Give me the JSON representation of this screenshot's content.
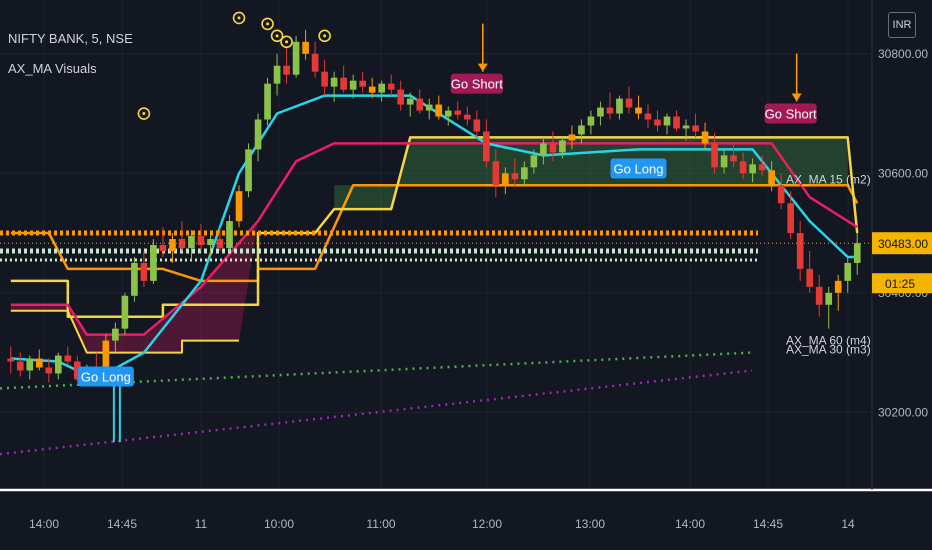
{
  "header": {
    "symbol": "NIFTY BANK, 5, NSE",
    "indicator": "AX_MA Visuals",
    "currency": "INR"
  },
  "chart_data": {
    "type": "candlestick",
    "x_ticks": [
      "14:00",
      "14:45",
      "11",
      "10:00",
      "11:00",
      "12:00",
      "13:00",
      "14:00",
      "14:45",
      "14"
    ],
    "y_ticks": [
      30800,
      30600,
      30400,
      30200
    ],
    "y_ticks_shown": [
      "30800.00",
      "30600.00",
      "30400.00",
      "30200.00"
    ],
    "ylim": [
      30070,
      30890
    ],
    "price_label": "30483.00",
    "price": 30483,
    "countdown": "01:25",
    "ma_labels": [
      {
        "text": "AX_MA 15 (m2)",
        "value": 30590
      },
      {
        "text": "AX_MA 60 (m4)",
        "value": 30320
      },
      {
        "text": "AX_MA 30 (m3)",
        "value": 30305
      }
    ],
    "signals": [
      {
        "text": "Go Long",
        "type": "long",
        "bar": 10,
        "price": 30260
      },
      {
        "text": "Go Short",
        "type": "short",
        "bar": 49,
        "price": 30750
      },
      {
        "text": "Go Long",
        "type": "long",
        "bar": 66,
        "price": 30608
      },
      {
        "text": "Go Short",
        "type": "short",
        "bar": 82,
        "price": 30700
      }
    ],
    "colors": {
      "up": "#8bc34a",
      "down": "#e53935",
      "flat": "#ff9800",
      "ma_fast": "#26d6e8",
      "ma_mid": "#e91e63",
      "ma_slow": "#f5d742",
      "ma_orange": "#ff9800",
      "dots_green": "#4caf50",
      "dots_purple": "#9c27b0",
      "long": "#2196f3",
      "short": "#a21a54"
    },
    "candles": [
      [
        30290,
        30310,
        30265,
        30285
      ],
      [
        30285,
        30300,
        30260,
        30270
      ],
      [
        30270,
        30295,
        30255,
        30290
      ],
      [
        30290,
        30305,
        30270,
        30275
      ],
      [
        30275,
        30290,
        30250,
        30265
      ],
      [
        30265,
        30300,
        30255,
        30295
      ],
      [
        30295,
        30310,
        30280,
        30285
      ],
      [
        30285,
        30295,
        30250,
        30255
      ],
      [
        30255,
        30280,
        30245,
        30275
      ],
      [
        30275,
        30300,
        30260,
        30270
      ],
      [
        30270,
        30330,
        30265,
        30320
      ],
      [
        30320,
        30350,
        30300,
        30340
      ],
      [
        30340,
        30400,
        30330,
        30395
      ],
      [
        30395,
        30460,
        30385,
        30450
      ],
      [
        30450,
        30470,
        30410,
        30420
      ],
      [
        30420,
        30490,
        30415,
        30480
      ],
      [
        30480,
        30510,
        30460,
        30470
      ],
      [
        30470,
        30500,
        30450,
        30490
      ],
      [
        30490,
        30520,
        30470,
        30475
      ],
      [
        30475,
        30505,
        30455,
        30495
      ],
      [
        30495,
        30515,
        30470,
        30480
      ],
      [
        30480,
        30500,
        30460,
        30490
      ],
      [
        30490,
        30510,
        30470,
        30475
      ],
      [
        30475,
        30530,
        30470,
        30520
      ],
      [
        30520,
        30580,
        30510,
        30570
      ],
      [
        30570,
        30650,
        30560,
        30640
      ],
      [
        30640,
        30700,
        30620,
        30690
      ],
      [
        30690,
        30760,
        30680,
        30750
      ],
      [
        30750,
        30800,
        30730,
        30780
      ],
      [
        30780,
        30810,
        30750,
        30765
      ],
      [
        30765,
        30830,
        30760,
        30820
      ],
      [
        30820,
        30840,
        30790,
        30800
      ],
      [
        30800,
        30820,
        30760,
        30770
      ],
      [
        30770,
        30790,
        30730,
        30745
      ],
      [
        30745,
        30770,
        30720,
        30760
      ],
      [
        30760,
        30780,
        30735,
        30740
      ],
      [
        30740,
        30765,
        30725,
        30755
      ],
      [
        30755,
        30770,
        30735,
        30745
      ],
      [
        30745,
        30760,
        30725,
        30735
      ],
      [
        30735,
        30755,
        30720,
        30750
      ],
      [
        30750,
        30765,
        30730,
        30740
      ],
      [
        30740,
        30755,
        30705,
        30715
      ],
      [
        30715,
        30735,
        30695,
        30725
      ],
      [
        30725,
        30740,
        30700,
        30705
      ],
      [
        30705,
        30725,
        30690,
        30715
      ],
      [
        30715,
        30730,
        30690,
        30695
      ],
      [
        30695,
        30712,
        30680,
        30705
      ],
      [
        30705,
        30720,
        30690,
        30698
      ],
      [
        30698,
        30712,
        30680,
        30690
      ],
      [
        30690,
        30705,
        30660,
        30670
      ],
      [
        30670,
        30690,
        30610,
        30620
      ],
      [
        30620,
        30640,
        30560,
        30580
      ],
      [
        30580,
        30610,
        30565,
        30600
      ],
      [
        30600,
        30625,
        30580,
        30590
      ],
      [
        30590,
        30620,
        30580,
        30610
      ],
      [
        30610,
        30640,
        30600,
        30630
      ],
      [
        30630,
        30660,
        30615,
        30650
      ],
      [
        30650,
        30670,
        30620,
        30635
      ],
      [
        30635,
        30660,
        30625,
        30655
      ],
      [
        30655,
        30680,
        30640,
        30665
      ],
      [
        30665,
        30690,
        30650,
        30680
      ],
      [
        30680,
        30705,
        30665,
        30695
      ],
      [
        30695,
        30720,
        30680,
        30710
      ],
      [
        30710,
        30735,
        30690,
        30700
      ],
      [
        30700,
        30730,
        30690,
        30725
      ],
      [
        30725,
        30745,
        30700,
        30710
      ],
      [
        30710,
        30730,
        30690,
        30700
      ],
      [
        30700,
        30715,
        30675,
        30690
      ],
      [
        30690,
        30705,
        30670,
        30680
      ],
      [
        30680,
        30700,
        30665,
        30695
      ],
      [
        30695,
        30705,
        30670,
        30675
      ],
      [
        30675,
        30690,
        30655,
        30680
      ],
      [
        30680,
        30700,
        30660,
        30670
      ],
      [
        30670,
        30685,
        30640,
        30650
      ],
      [
        30650,
        30668,
        30600,
        30610
      ],
      [
        30610,
        30640,
        30600,
        30630
      ],
      [
        30630,
        30650,
        30610,
        30620
      ],
      [
        30620,
        30635,
        30590,
        30600
      ],
      [
        30600,
        30625,
        30585,
        30615
      ],
      [
        30615,
        30630,
        30595,
        30605
      ],
      [
        30605,
        30620,
        30570,
        30580
      ],
      [
        30580,
        30600,
        30540,
        30550
      ],
      [
        30550,
        30570,
        30490,
        30500
      ],
      [
        30500,
        30520,
        30420,
        30440
      ],
      [
        30440,
        30470,
        30400,
        30410
      ],
      [
        30410,
        30430,
        30360,
        30380
      ],
      [
        30380,
        30410,
        30340,
        30400
      ],
      [
        30400,
        30430,
        30370,
        30420
      ],
      [
        30420,
        30460,
        30400,
        30450
      ],
      [
        30450,
        30500,
        30430,
        30483
      ]
    ]
  }
}
